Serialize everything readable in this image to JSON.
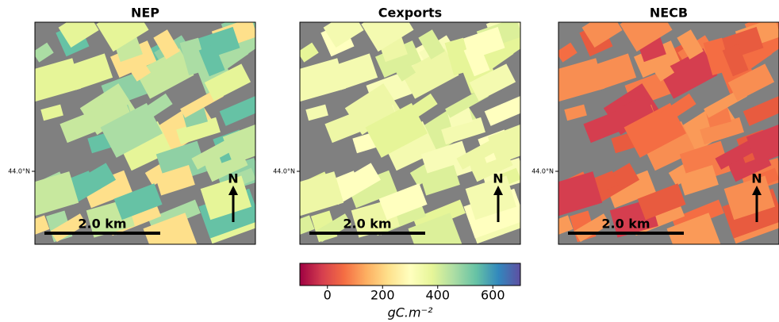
{
  "panels": [
    {
      "title": "NEP",
      "lat_label": "44.0°N",
      "scale_label": "2.0 km",
      "north": "N"
    },
    {
      "title": "Cexports",
      "lat_label": "44.0°N",
      "scale_label": "2.0 km",
      "north": "N"
    },
    {
      "title": "NECB",
      "lat_label": "44.0°N",
      "scale_label": "2.0 km",
      "north": "N"
    }
  ],
  "colorbar": {
    "vmin": -100,
    "vmax": 700,
    "ticks": [
      0,
      200,
      400,
      600
    ],
    "label": "gC.m⁻²"
  }
}
